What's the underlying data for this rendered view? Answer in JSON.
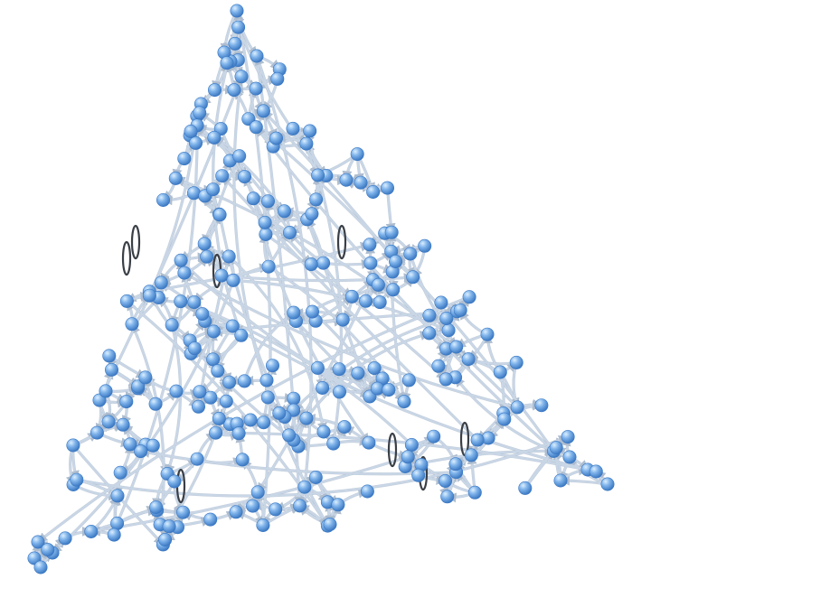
{
  "figure": {
    "kind": "3d-network-graph",
    "background_color": "#ffffff",
    "node_color": "#6fa8e6",
    "node_highlight_color": "#d6ecff",
    "node_shadow_color": "#3b78c2",
    "edge_color": "#c9d6e6",
    "edge_shadow_color": "#8ea4bd",
    "self_loop_color": "#3a3f46",
    "edge_style": "curved-directed-with-arrowheads",
    "shape": "tetrahedral mesh with pinched apex at top, left and right"
  }
}
